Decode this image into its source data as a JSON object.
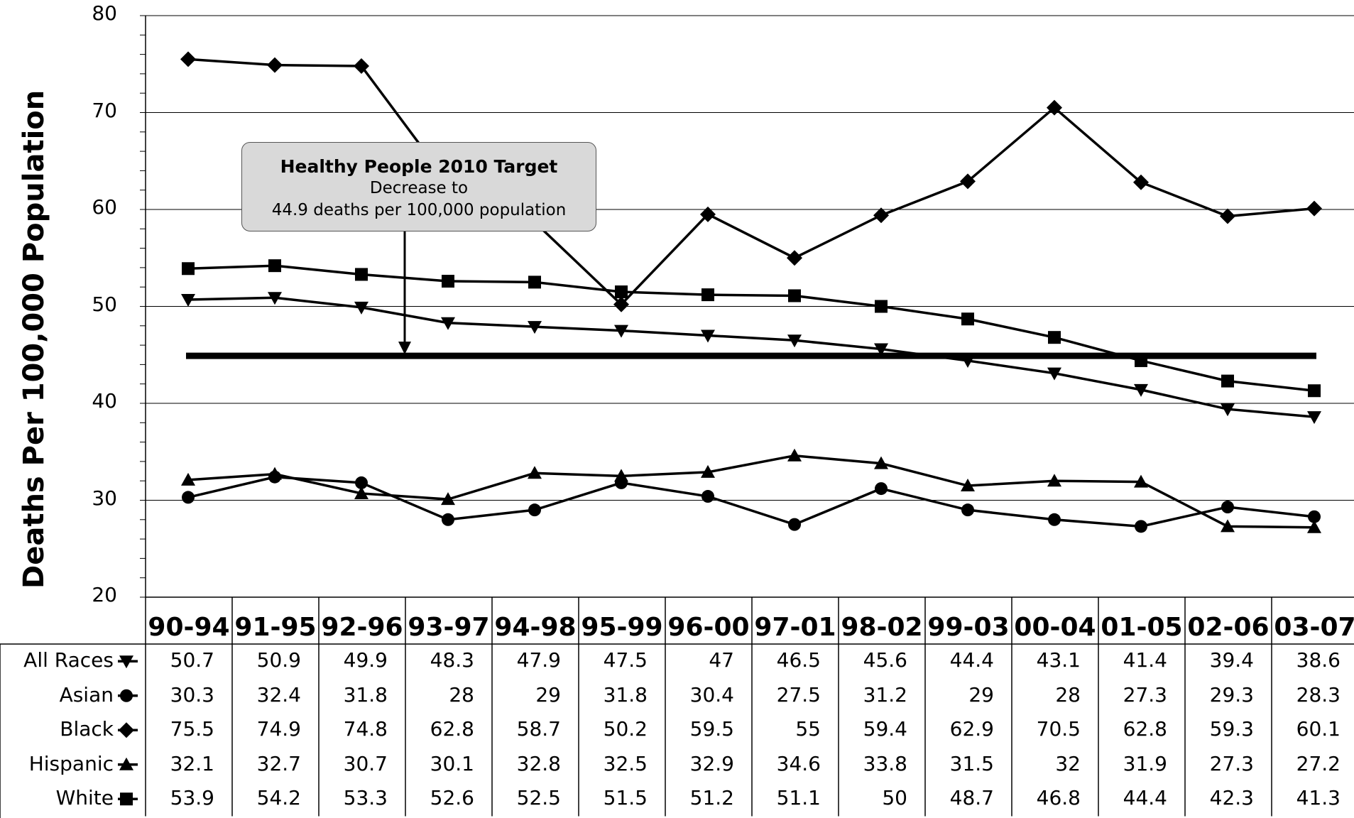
{
  "chart_data": {
    "type": "line",
    "title": "",
    "ylabel": "Deaths Per 100,000 Population",
    "xlabel": "",
    "ylim": [
      20,
      80
    ],
    "yticks": [
      20,
      30,
      40,
      50,
      60,
      70,
      80
    ],
    "grid": true,
    "categories": [
      "90-94",
      "91-95",
      "92-96",
      "93-97",
      "94-98",
      "95-99",
      "96-00",
      "97-01",
      "98-02",
      "99-03",
      "00-04",
      "01-05",
      "02-06",
      "03-07"
    ],
    "series": [
      {
        "name": "All Races",
        "marker": "triangle-down",
        "values": [
          50.7,
          50.9,
          49.9,
          48.3,
          47.9,
          47.5,
          47,
          46.5,
          45.6,
          44.4,
          43.1,
          41.4,
          39.4,
          38.6
        ]
      },
      {
        "name": "Asian",
        "marker": "circle",
        "values": [
          30.3,
          32.4,
          31.8,
          28,
          29,
          31.8,
          30.4,
          27.5,
          31.2,
          29,
          28,
          27.3,
          29.3,
          28.3
        ]
      },
      {
        "name": "Black",
        "marker": "diamond",
        "values": [
          75.5,
          74.9,
          74.8,
          62.8,
          58.7,
          50.2,
          59.5,
          55,
          59.4,
          62.9,
          70.5,
          62.8,
          59.3,
          60.1
        ]
      },
      {
        "name": "Hispanic",
        "marker": "triangle-up",
        "values": [
          32.1,
          32.7,
          30.7,
          30.1,
          32.8,
          32.5,
          32.9,
          34.6,
          33.8,
          31.5,
          32,
          31.9,
          27.3,
          27.2
        ]
      },
      {
        "name": "White",
        "marker": "square",
        "values": [
          53.9,
          54.2,
          53.3,
          52.6,
          52.5,
          51.5,
          51.2,
          51.1,
          50,
          48.7,
          46.8,
          44.4,
          42.3,
          41.3
        ]
      }
    ],
    "target": {
      "value": 44.9
    },
    "annotation": {
      "line1": "Healthy People 2010 Target",
      "line2": "Decrease to",
      "line3": "44.9 deaths per 100,000 population"
    }
  }
}
